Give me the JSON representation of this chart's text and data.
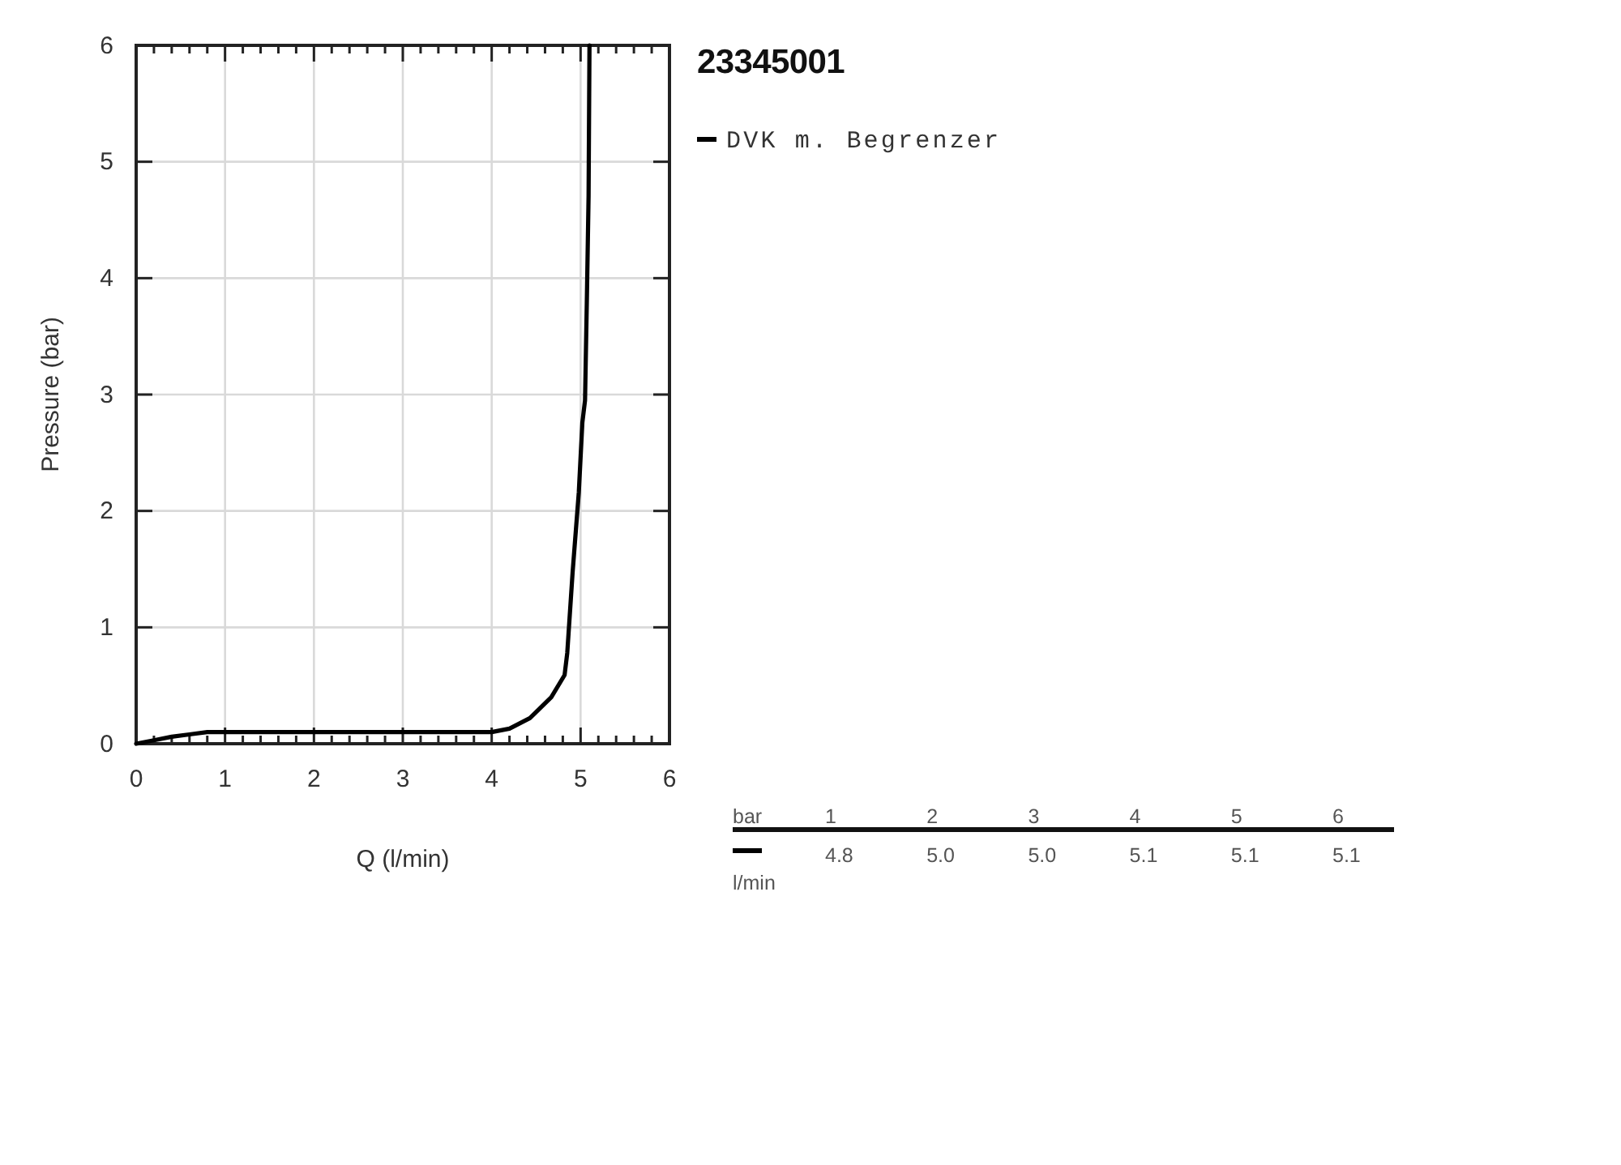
{
  "chart_data": {
    "type": "line",
    "title": "23345001",
    "xlabel": "Q (l/min)",
    "ylabel": "Pressure (bar)",
    "series": [
      {
        "name": "DVK m. Begrenzer",
        "color": "#000000",
        "x": [
          0,
          0.2,
          0.4,
          0.6,
          0.8,
          1.0,
          2.0,
          3.0,
          4.0,
          4.2,
          4.43,
          4.67,
          4.82,
          4.85,
          4.91,
          4.98,
          5.02,
          5.05,
          5.07,
          5.09,
          5.1
        ],
        "values": [
          0,
          0.03,
          0.06,
          0.08,
          0.1,
          0.1,
          0.1,
          0.1,
          0.1,
          0.13,
          0.22,
          0.4,
          0.59,
          0.78,
          1.47,
          2.16,
          2.76,
          2.95,
          3.79,
          4.71,
          6
        ]
      }
    ],
    "xlim": [
      0,
      6
    ],
    "ylim": [
      0,
      6
    ],
    "xticks": [
      0,
      {
        "value": 0.2,
        "label": null
      },
      {
        "value": 0.4,
        "label": null
      },
      {
        "value": 0.6,
        "label": null
      },
      {
        "value": 0.8,
        "label": null
      },
      1,
      {
        "value": 1.2,
        "label": null
      },
      {
        "value": 1.4,
        "label": null
      },
      {
        "value": 1.6,
        "label": null
      },
      {
        "value": 1.8,
        "label": null
      },
      2,
      {
        "value": 2.2,
        "label": null
      },
      {
        "value": 2.4,
        "label": null
      },
      {
        "value": 2.6,
        "label": null
      },
      {
        "value": 2.8,
        "label": null
      },
      3,
      {
        "value": 3.2,
        "label": null
      },
      {
        "value": 3.4,
        "label": null
      },
      {
        "value": 3.6,
        "label": null
      },
      {
        "value": 3.8,
        "label": null
      },
      4,
      {
        "value": 4.2,
        "label": null
      },
      {
        "value": 4.4,
        "label": null
      },
      {
        "value": 4.6,
        "label": null
      },
      {
        "value": 4.8,
        "label": null
      },
      5,
      {
        "value": 5.2,
        "label": null
      },
      {
        "value": 5.4,
        "label": null
      },
      {
        "value": 5.6,
        "label": null
      },
      {
        "value": 5.8,
        "label": null
      },
      6
    ],
    "yticks": [
      0,
      1,
      2,
      3,
      4,
      5,
      6
    ],
    "annotations": [
      "bar",
      "1",
      "2",
      "3",
      "4",
      "5",
      "6",
      "l/min",
      "4.8",
      "5.0",
      "5.0",
      "5.1",
      "5.1",
      "5.1"
    ],
    "grid": true,
    "legend": "top right",
    "line_style": "solid"
  }
}
